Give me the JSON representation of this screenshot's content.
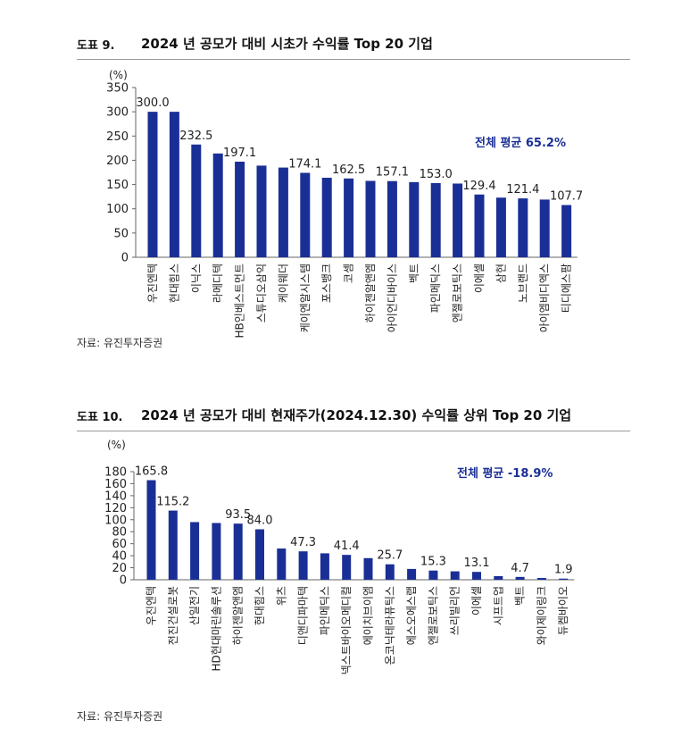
{
  "figures": [
    {
      "number": "도표 9.",
      "title": "2024 년 공모가 대비 시초가 수익률 Top 20 기업",
      "source": "자료: 유진투자증권",
      "average_label": "전체 평균  65.2%"
    },
    {
      "number": "도표 10.",
      "title": "2024 년 공모가 대비 현재주가(2024.12.30) 수익률 상위 Top 20 기업",
      "source": "자료: 유진투자증권",
      "average_label": "전체 평균  -18.9%"
    }
  ],
  "colors": {
    "bar": "#1a2f96",
    "average_text": "#1a2f96",
    "axis": "#666666"
  },
  "chart_data": [
    {
      "type": "bar",
      "ylabel": "(%)",
      "ylim": [
        0,
        350
      ],
      "yticks": [
        0,
        50,
        100,
        150,
        200,
        250,
        300,
        350
      ],
      "categories": [
        "우진엔텍",
        "현대힘스",
        "이닉스",
        "라메디텍",
        "HB인베스트먼트",
        "스튜디오삼익",
        "케이웨더",
        "케이엔알시스템",
        "포스뱅크",
        "코셈",
        "하이젠알앤엠",
        "아이언디바이스",
        "벡트",
        "파인메딕스",
        "엔젤로보틱스",
        "이에셀",
        "삼현",
        "노브랜드",
        "아이엠비디엑스",
        "티디에스팜"
      ],
      "values": [
        300.0,
        300.0,
        232.5,
        214.0,
        197.1,
        189.0,
        185.0,
        174.1,
        164.0,
        162.5,
        157.5,
        157.1,
        155.0,
        153.0,
        152.0,
        129.4,
        123.0,
        121.4,
        119.0,
        107.7
      ],
      "data_labels": [
        "300.0",
        "",
        "232.5",
        "",
        "197.1",
        "",
        "",
        "174.1",
        "",
        "162.5",
        "",
        "157.1",
        "",
        "153.0",
        "",
        "129.4",
        "",
        "121.4",
        "",
        "107.7"
      ]
    },
    {
      "type": "bar",
      "ylabel": "(%)",
      "ylim": [
        0,
        180
      ],
      "yticks": [
        0,
        20,
        40,
        60,
        80,
        100,
        120,
        140,
        160,
        180
      ],
      "categories": [
        "우진엔텍",
        "전진건설로봇",
        "산일전기",
        "HD현대마린솔루션",
        "하이젠알앤엠",
        "현대힘스",
        "위츠",
        "디앤디파마텍",
        "파인메딕스",
        "넥스트바이오메디컬",
        "에이치브이엠",
        "온코닉테라퓨틱스",
        "에스오에스랩",
        "엔젤로보틱스",
        "쓰리빌리언",
        "이에셀",
        "시프트업",
        "벡트",
        "와이제이링크",
        "듀켐바이오"
      ],
      "values": [
        165.8,
        115.2,
        96.0,
        94.5,
        93.5,
        84.0,
        52.0,
        47.3,
        44.0,
        41.4,
        36.0,
        25.7,
        18.0,
        15.3,
        14.0,
        13.1,
        6.0,
        4.7,
        3.0,
        1.9
      ],
      "data_labels": [
        "165.8",
        "115.2",
        "",
        "",
        "93.5",
        "84.0",
        "",
        "47.3",
        "",
        "41.4",
        "",
        "25.7",
        "",
        "15.3",
        "",
        "13.1",
        "",
        "4.7",
        "",
        "1.9"
      ]
    }
  ]
}
